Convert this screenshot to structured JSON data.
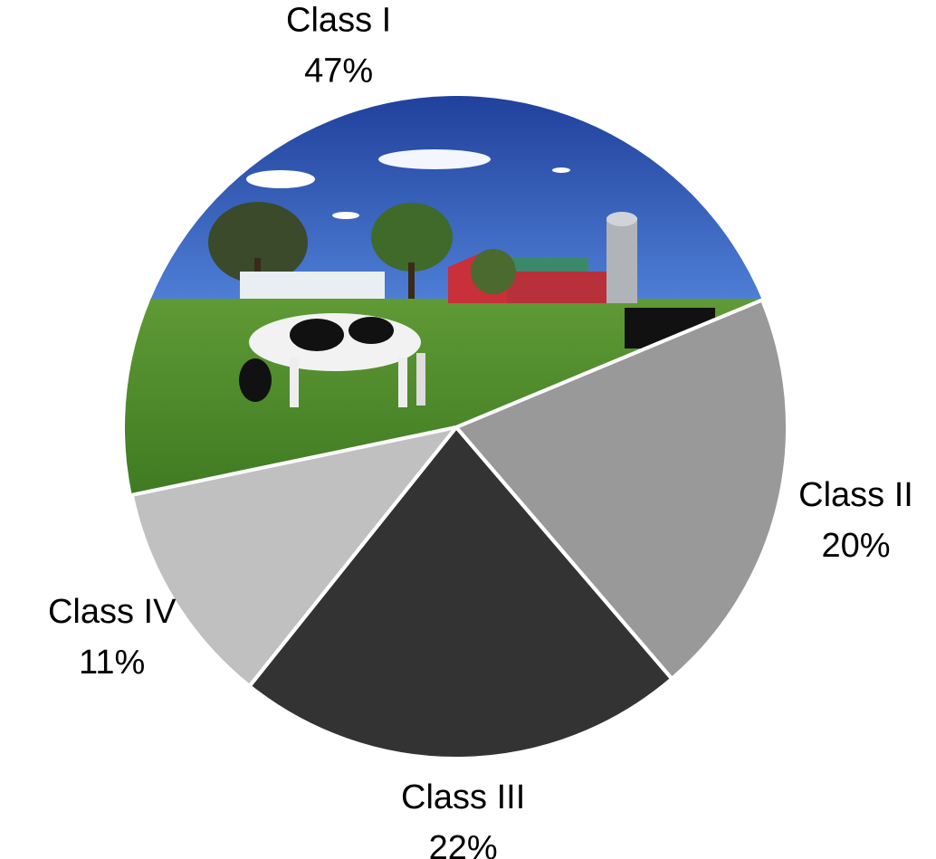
{
  "chart_data": {
    "type": "pie",
    "categories": [
      "Class I",
      "Class II",
      "Class III",
      "Class IV"
    ],
    "values": [
      47,
      20,
      22,
      11
    ],
    "value_labels": [
      "47%",
      "20%",
      "22%",
      "11%"
    ],
    "colors": [
      "#4f8a2b",
      "#999999",
      "#333333",
      "#c0c0c0"
    ]
  }
}
